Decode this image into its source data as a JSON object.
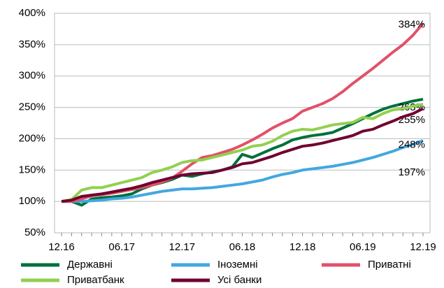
{
  "chart_data": {
    "type": "line",
    "categories": [
      "12.16",
      null,
      null,
      null,
      null,
      null,
      "06.17",
      null,
      null,
      null,
      null,
      null,
      "12.17",
      null,
      null,
      null,
      null,
      null,
      "06.18",
      null,
      null,
      null,
      null,
      null,
      "12.18",
      null,
      null,
      null,
      null,
      null,
      "06.19",
      null,
      null,
      null,
      null,
      null,
      "12.19"
    ],
    "ylim": [
      50,
      400
    ],
    "yticks": [
      {
        "value": 50,
        "label": "50%"
      },
      {
        "value": 100,
        "label": "100%"
      },
      {
        "value": 150,
        "label": "150%"
      },
      {
        "value": 200,
        "label": "200%"
      },
      {
        "value": 250,
        "label": "250%"
      },
      {
        "value": 300,
        "label": "300%"
      },
      {
        "value": 350,
        "label": "350%"
      },
      {
        "value": 400,
        "label": "400%"
      }
    ],
    "grid": true,
    "series": [
      {
        "name": "Державні",
        "color": "#00703c",
        "end_label": "263%",
        "values": [
          100,
          100,
          94,
          104,
          106,
          107,
          109,
          112,
          120,
          126,
          130,
          135,
          142,
          140,
          144,
          147,
          150,
          155,
          175,
          170,
          177,
          184,
          190,
          198,
          202,
          205,
          207,
          210,
          217,
          224,
          232,
          240,
          247,
          252,
          256,
          260,
          263
        ]
      },
      {
        "name": "Іноземні",
        "color": "#41a8e0",
        "end_label": "197%",
        "values": [
          100,
          100,
          100,
          101,
          102,
          104,
          105,
          107,
          110,
          113,
          116,
          118,
          120,
          120,
          121,
          122,
          124,
          126,
          128,
          131,
          134,
          139,
          143,
          146,
          150,
          152,
          154,
          156,
          159,
          162,
          166,
          170,
          175,
          180,
          186,
          191,
          197
        ]
      },
      {
        "name": "Приватні",
        "color": "#e05268",
        "end_label": "384%",
        "values": [
          100,
          100,
          104,
          109,
          111,
          113,
          116,
          119,
          122,
          126,
          131,
          137,
          148,
          160,
          170,
          173,
          178,
          183,
          190,
          198,
          207,
          217,
          225,
          232,
          244,
          250,
          256,
          264,
          275,
          288,
          300,
          312,
          325,
          338,
          350,
          365,
          384
        ]
      },
      {
        "name": "Приватбанк",
        "color": "#92d050",
        "end_label": "255%",
        "values": [
          100,
          103,
          118,
          122,
          122,
          126,
          130,
          134,
          138,
          146,
          150,
          155,
          162,
          165,
          166,
          170,
          174,
          178,
          182,
          188,
          190,
          196,
          205,
          212,
          215,
          214,
          218,
          222,
          224,
          226,
          234,
          232,
          240,
          246,
          248,
          252,
          255
        ]
      },
      {
        "name": "Усі банки",
        "color": "#700030",
        "end_label": "248%",
        "values": [
          100,
          102,
          108,
          110,
          112,
          115,
          118,
          121,
          125,
          130,
          134,
          138,
          142,
          144,
          145,
          146,
          150,
          154,
          160,
          162,
          167,
          172,
          178,
          183,
          188,
          190,
          193,
          197,
          201,
          205,
          212,
          215,
          222,
          228,
          235,
          240,
          248
        ]
      }
    ]
  }
}
